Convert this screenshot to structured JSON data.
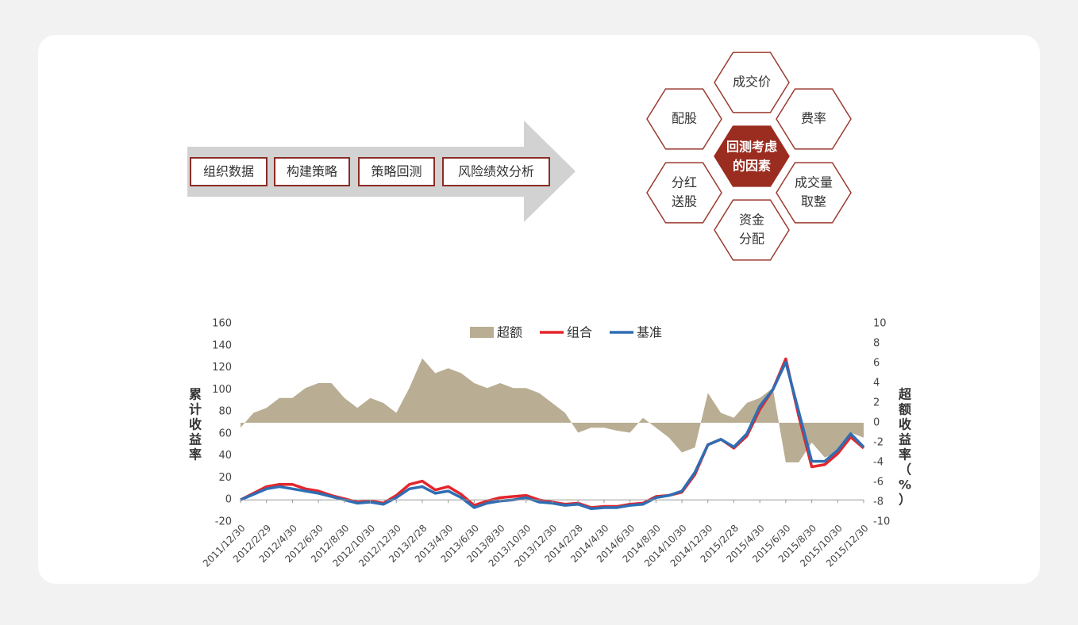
{
  "process": {
    "steps": [
      "组织数据",
      "构建策略",
      "策略回测",
      "风险绩效分析"
    ]
  },
  "factors": {
    "center": [
      "回测考虑",
      "的因素"
    ],
    "items": [
      [
        "成交价"
      ],
      [
        "费率"
      ],
      [
        "成交量",
        "取整"
      ],
      [
        "资金",
        "分配"
      ],
      [
        "分红",
        "送股"
      ],
      [
        "配股"
      ]
    ]
  },
  "chart_data": {
    "type": "line",
    "categories": [
      "2011/12/30",
      null,
      "2012/2/29",
      null,
      "2012/4/30",
      null,
      "2012/6/30",
      null,
      "2012/8/30",
      null,
      "2012/10/30",
      null,
      "2012/12/30",
      null,
      "2013/2/28",
      null,
      "2013/4/30",
      null,
      "2013/6/30",
      null,
      "2013/8/30",
      null,
      "2013/10/30",
      null,
      "2013/12/30",
      null,
      "2014/2/28",
      null,
      "2014/4/30",
      null,
      "2014/6/30",
      null,
      "2014/8/30",
      null,
      "2014/10/30",
      null,
      "2014/12/30",
      null,
      "2015/2/28",
      null,
      "2015/4/30",
      null,
      "2015/6/30",
      null,
      "2015/8/30",
      null,
      "2015/10/30",
      null,
      "2015/12/30"
    ],
    "series": [
      {
        "name": "超额",
        "color": "#b9ae93",
        "axis": "y2",
        "kind": "area",
        "values": [
          -0.5,
          1,
          1.5,
          2.5,
          2.5,
          3.5,
          4,
          4,
          2.5,
          1.5,
          2.5,
          2,
          1,
          3.5,
          6.5,
          5,
          5.5,
          5,
          4,
          3.5,
          4,
          3.5,
          3.5,
          3,
          2,
          1,
          -1,
          -0.5,
          -0.5,
          -0.8,
          -1,
          0.5,
          -0.5,
          -1.5,
          -3,
          -2.5,
          3,
          1,
          0.5,
          2,
          2.5,
          3.5,
          -4,
          -4,
          -2,
          -3.5,
          -3,
          -1,
          -1.5
        ]
      },
      {
        "name": "组合",
        "color": "#e3262c",
        "values": [
          0,
          6,
          12,
          14,
          14,
          10,
          8,
          4,
          1,
          -2,
          -1,
          -3,
          4,
          14,
          17,
          9,
          12,
          5,
          -5,
          -1,
          2,
          3,
          4,
          0,
          -2,
          -4,
          -3,
          -7,
          -6,
          -6,
          -4,
          -3,
          3,
          4,
          7,
          23,
          50,
          55,
          47,
          58,
          82,
          100,
          128,
          76,
          30,
          32,
          42,
          57,
          47
        ]
      },
      {
        "name": "基准",
        "color": "#2f6eb3",
        "values": [
          0,
          5,
          10,
          12,
          10,
          8,
          6,
          3,
          0,
          -3,
          -2,
          -4,
          2,
          10,
          12,
          6,
          8,
          2,
          -7,
          -3,
          -1,
          0,
          2,
          -2,
          -3,
          -5,
          -4,
          -8,
          -7,
          -7,
          -5,
          -4,
          2,
          4,
          8,
          25,
          50,
          55,
          48,
          60,
          85,
          100,
          125,
          80,
          35,
          35,
          45,
          60,
          48
        ]
      }
    ],
    "ylim": [
      -20,
      160
    ],
    "yticks": [
      -20,
      0,
      20,
      40,
      60,
      80,
      100,
      120,
      140,
      160
    ],
    "y2lim": [
      -10,
      10
    ],
    "y2ticks": [
      -10,
      -8,
      -6,
      -4,
      -2,
      0,
      2,
      4,
      6,
      8,
      10
    ],
    "ylabel": "累计收益率",
    "y2label": "超额收益率（%）"
  }
}
